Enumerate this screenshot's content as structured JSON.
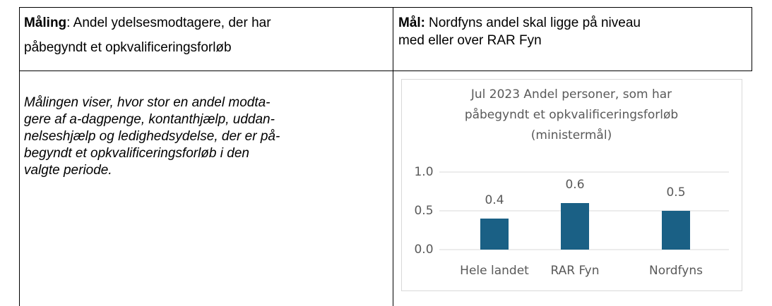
{
  "table": {
    "header": [
      {
        "label": "Måling",
        "lines": [
          ": Andel ydelsesmodtagere, der har",
          "påbegyndt et opkvalificeringsforløb"
        ]
      },
      {
        "label": "Mål:",
        "lines": [
          "Nordfyns andel skal ligge på niveau",
          "med eller over RAR Fyn"
        ]
      }
    ],
    "description": [
      "Målingen viser, hvor stor en andel modta-",
      "gere af a-dagpenge, kontanthjælp, uddan-",
      "nelseshjælp og ledighedsydelse, der er på-",
      "begyndt et opkvalificeringsforløb i den",
      "valgte periode."
    ]
  },
  "chart_data": {
    "type": "bar",
    "title": [
      "Jul 2023 Andel personer, som har",
      "påbegyndt et opkvalificeringsforløb",
      "(ministermål)"
    ],
    "categories": [
      "Hele landet",
      "RAR Fyn",
      "Nordfyns"
    ],
    "values": [
      0.4,
      0.6,
      0.5
    ],
    "color": "#1a6085",
    "ylim": [
      0,
      1
    ],
    "yticks": [
      {
        "value": 0,
        "label": "0.0"
      },
      0.5,
      {
        "value": 1,
        "label": "1.0"
      }
    ],
    "grid": true
  }
}
